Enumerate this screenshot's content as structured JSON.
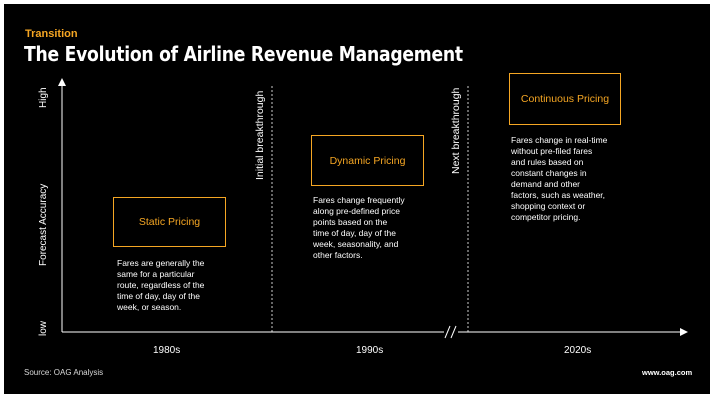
{
  "header": {
    "kicker": "Transition",
    "title": "The Evolution of Airline Revenue Management"
  },
  "y_axis": {
    "label": "Forecast Accuracy",
    "high": "High",
    "low": "low"
  },
  "breakthroughs": {
    "first": "Initial breakthrough",
    "second": "Next breakthrough"
  },
  "stages": [
    {
      "name": "Static Pricing",
      "description": "Fares are generally the\nsame for a particular\nroute, regardless of the\ntime of day, day of the\nweek, or season.",
      "era": "1980s"
    },
    {
      "name": "Dynamic Pricing",
      "description": "Fares change frequently\nalong pre-defined price\npoints based on the\ntime of day, day of the\nweek, seasonality, and\nother factors.",
      "era": "1990s"
    },
    {
      "name": "Continuous Pricing",
      "description": "Fares change in real-time\nwithout pre-filed fares\nand rules based on\nconstant changes in\ndemand and other\nfactors, such as weather,\nshopping context or\ncompetitor pricing.",
      "era": "2020s"
    }
  ],
  "footer": {
    "source": "Source: OAG Analysis",
    "url": "www.oag.com"
  },
  "colors": {
    "accent": "#f5a623",
    "background": "#000000",
    "text": "#ffffff"
  }
}
